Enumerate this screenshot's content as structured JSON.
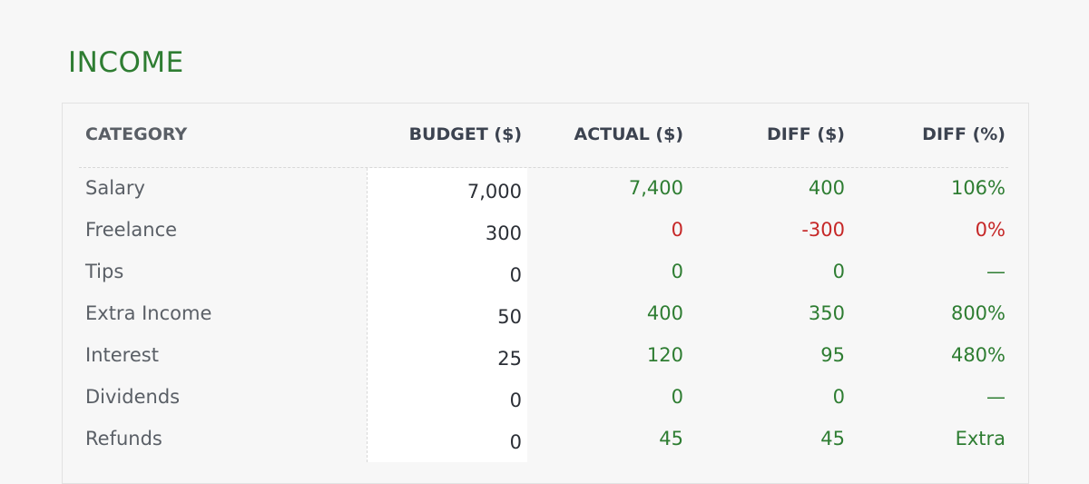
{
  "section": {
    "title": "INCOME"
  },
  "table": {
    "headers": {
      "category": "CATEGORY",
      "budget": "BUDGET ($)",
      "actual": "ACTUAL ($)",
      "diff": "DIFF ($)",
      "diff_pct": "DIFF (%)"
    },
    "rows": [
      {
        "category": "Salary",
        "budget": "7,000",
        "actual": "7,400",
        "diff": "400",
        "diff_pct": "106%",
        "status": "positive"
      },
      {
        "category": "Freelance",
        "budget": "300",
        "actual": "0",
        "diff": "-300",
        "diff_pct": "0%",
        "status": "negative"
      },
      {
        "category": "Tips",
        "budget": "0",
        "actual": "0",
        "diff": "0",
        "diff_pct": "—",
        "status": "positive"
      },
      {
        "category": "Extra Income",
        "budget": "50",
        "actual": "400",
        "diff": "350",
        "diff_pct": "800%",
        "status": "positive"
      },
      {
        "category": "Interest",
        "budget": "25",
        "actual": "120",
        "diff": "95",
        "diff_pct": "480%",
        "status": "positive"
      },
      {
        "category": "Dividends",
        "budget": "0",
        "actual": "0",
        "diff": "0",
        "diff_pct": "—",
        "status": "positive"
      },
      {
        "category": "Refunds",
        "budget": "0",
        "actual": "45",
        "diff": "45",
        "diff_pct": "Extra",
        "status": "positive"
      }
    ]
  },
  "colors": {
    "title": "#2e7d32",
    "positive": "#2e7d32",
    "negative": "#c62828",
    "budget_column_bg": "#ffffff"
  }
}
